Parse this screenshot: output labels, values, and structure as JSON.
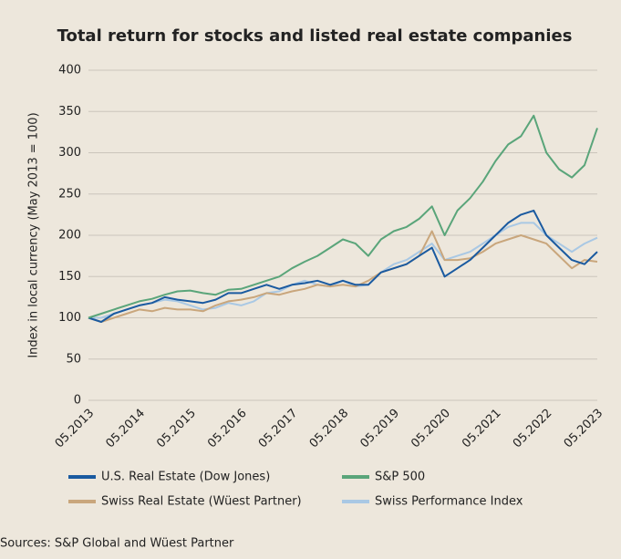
{
  "chart_data": {
    "type": "line",
    "title": "Total return for stocks and listed real estate companies",
    "y_label": "Index in local currency (May 2013 = 100)",
    "source": "Sources: S&P Global and Wüest Partner",
    "x": [
      "05.2013",
      "08.2013",
      "11.2013",
      "02.2014",
      "05.2014",
      "08.2014",
      "11.2014",
      "02.2015",
      "05.2015",
      "08.2015",
      "11.2015",
      "02.2016",
      "05.2016",
      "08.2016",
      "11.2016",
      "02.2017",
      "05.2017",
      "08.2017",
      "11.2017",
      "02.2018",
      "05.2018",
      "08.2018",
      "11.2018",
      "02.2019",
      "05.2019",
      "08.2019",
      "11.2019",
      "02.2020",
      "05.2020",
      "08.2020",
      "11.2020",
      "02.2021",
      "05.2021",
      "08.2021",
      "11.2021",
      "02.2022",
      "05.2022",
      "08.2022",
      "11.2022",
      "02.2023",
      "05.2023"
    ],
    "xticks": [
      "05.2013",
      "05.2014",
      "05.2015",
      "05.2016",
      "05.2017",
      "05.2018",
      "05.2019",
      "05.2020",
      "05.2021",
      "05.2022",
      "05.2023"
    ],
    "ylim": [
      0,
      400
    ],
    "yticks": [
      0,
      50,
      100,
      150,
      200,
      250,
      300,
      350,
      400
    ],
    "grid": true,
    "series": [
      {
        "name": "U.S. Real Estate (Dow Jones)",
        "color": "#1a5aa0",
        "values": [
          100,
          95,
          105,
          110,
          115,
          118,
          125,
          122,
          120,
          118,
          122,
          130,
          130,
          135,
          140,
          135,
          140,
          142,
          145,
          140,
          145,
          140,
          140,
          155,
          160,
          165,
          175,
          185,
          150,
          160,
          170,
          185,
          200,
          215,
          225,
          230,
          200,
          185,
          170,
          165,
          180
        ]
      },
      {
        "name": "S&P 500",
        "color": "#5aa57a",
        "values": [
          100,
          105,
          110,
          115,
          120,
          123,
          128,
          132,
          133,
          130,
          128,
          134,
          135,
          140,
          145,
          150,
          160,
          168,
          175,
          185,
          195,
          190,
          175,
          195,
          205,
          210,
          220,
          235,
          200,
          230,
          245,
          265,
          290,
          310,
          320,
          345,
          300,
          280,
          270,
          285,
          330
        ]
      },
      {
        "name": "Swiss Real Estate (Wüest Partner)",
        "color": "#c9a67c",
        "values": [
          100,
          95,
          100,
          105,
          110,
          108,
          112,
          110,
          110,
          108,
          115,
          120,
          122,
          125,
          130,
          128,
          132,
          135,
          140,
          138,
          140,
          138,
          145,
          155,
          160,
          165,
          175,
          205,
          170,
          170,
          172,
          180,
          190,
          195,
          200,
          195,
          190,
          175,
          160,
          170,
          168
        ]
      },
      {
        "name": "Swiss Performance Index",
        "color": "#a9c8e4",
        "values": [
          100,
          100,
          105,
          110,
          115,
          118,
          122,
          120,
          115,
          110,
          112,
          118,
          115,
          120,
          130,
          132,
          140,
          145,
          140,
          138,
          145,
          138,
          140,
          155,
          165,
          170,
          180,
          190,
          170,
          175,
          180,
          190,
          200,
          210,
          215,
          215,
          200,
          190,
          180,
          190,
          197
        ]
      }
    ]
  }
}
